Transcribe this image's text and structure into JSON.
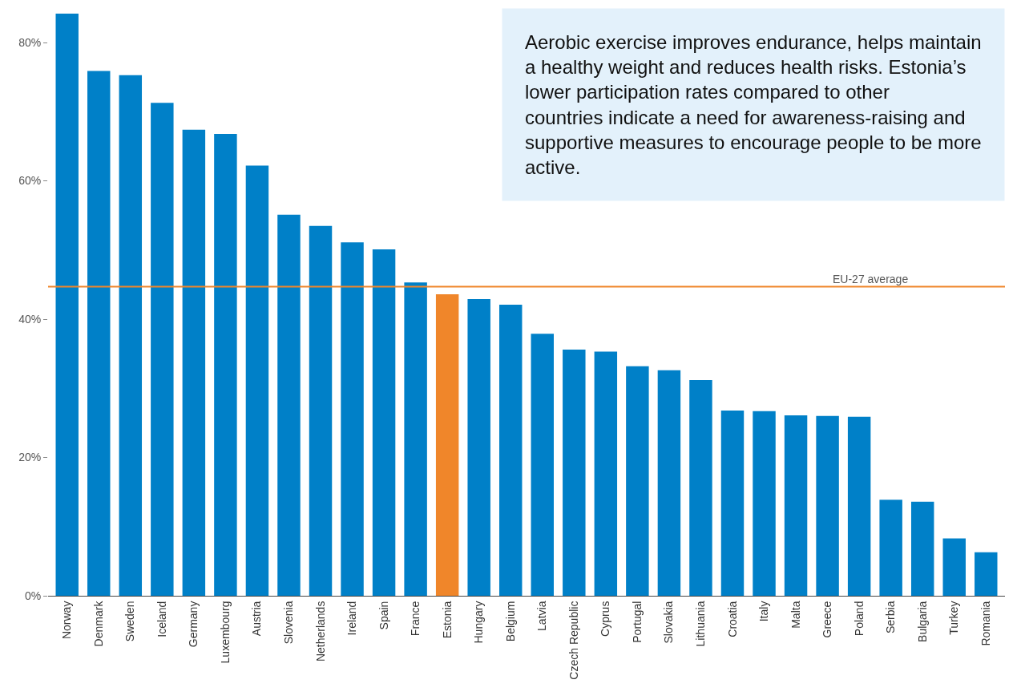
{
  "chart_data": {
    "type": "bar",
    "categories": [
      "Norway",
      "Denmark",
      "Sweden",
      "Iceland",
      "Germany",
      "Luxembourg",
      "Austria",
      "Slovenia",
      "Netherlands",
      "Ireland",
      "Spain",
      "France",
      "Estonia",
      "Hungary",
      "Belgium",
      "Latvia",
      "Czech Republic",
      "Cyprus",
      "Portugal",
      "Slovakia",
      "Lithuania",
      "Croatia",
      "Italy",
      "Malta",
      "Greece",
      "Poland",
      "Serbia",
      "Bulgaria",
      "Turkey",
      "Romania"
    ],
    "values": [
      84.2,
      75.9,
      75.3,
      71.3,
      67.4,
      66.8,
      62.2,
      55.1,
      53.5,
      51.1,
      50.1,
      45.3,
      43.6,
      42.9,
      42.1,
      37.9,
      35.6,
      35.3,
      33.2,
      32.6,
      31.2,
      26.8,
      26.7,
      26.1,
      26.0,
      25.9,
      13.9,
      13.6,
      8.3,
      6.3
    ],
    "colors": [
      "#0080c8",
      "#0080c8",
      "#0080c8",
      "#0080c8",
      "#0080c8",
      "#0080c8",
      "#0080c8",
      "#0080c8",
      "#0080c8",
      "#0080c8",
      "#0080c8",
      "#0080c8",
      "#f0862a",
      "#0080c8",
      "#0080c8",
      "#0080c8",
      "#0080c8",
      "#0080c8",
      "#0080c8",
      "#0080c8",
      "#0080c8",
      "#0080c8",
      "#0080c8",
      "#0080c8",
      "#0080c8",
      "#0080c8",
      "#0080c8",
      "#0080c8",
      "#0080c8",
      "#0080c8"
    ],
    "ylim": [
      0,
      85
    ],
    "yticks": [
      {
        "value": 0,
        "label": "0%"
      },
      {
        "value": 20,
        "label": "20%"
      },
      {
        "value": 40,
        "label": "40%"
      },
      {
        "value": 60,
        "label": "60%"
      },
      {
        "value": 80,
        "label": "80%"
      }
    ],
    "ref_lines": [
      {
        "axis": "y",
        "value": 44.7,
        "label": "EU-27 average",
        "color": "#f0862a"
      }
    ],
    "annotations": [
      "Aerobic exercise improves endurance, helps maintain a healthy weight and reduces health risks. Estonia’s lower participation rates compared to other countries indicate a need for awareness-raising and supportive measures to encourage people to be more active."
    ]
  }
}
